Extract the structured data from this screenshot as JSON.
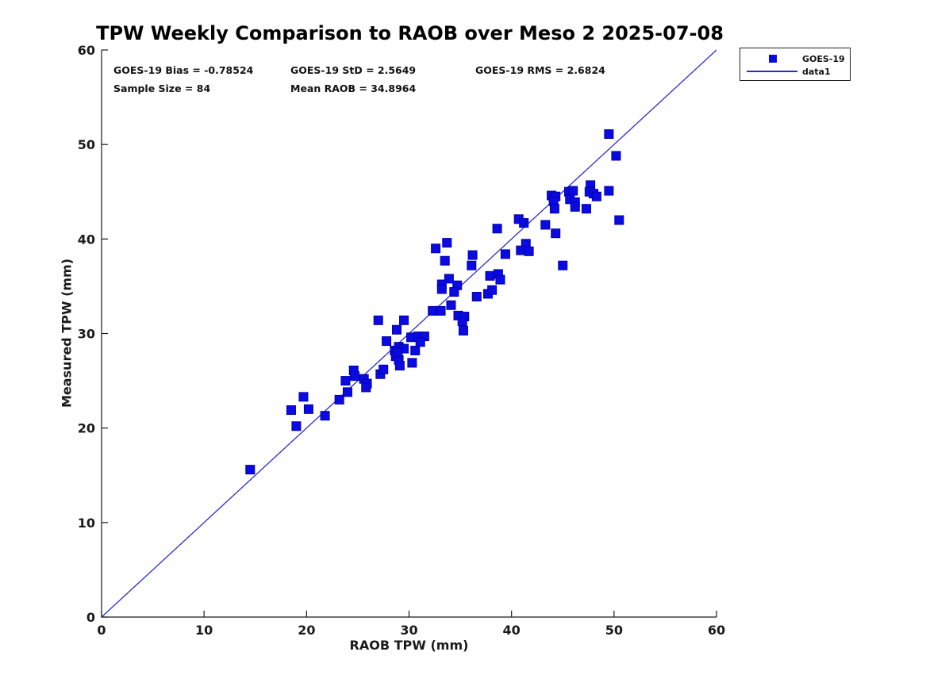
{
  "title": "TPW Weekly Comparison to RAOB over Meso 2 2025-07-08",
  "stats": {
    "bias": "GOES-19 Bias = -0.78524",
    "std": "GOES-19 StD = 2.5649",
    "rms": "GOES-19 RMS = 2.6824",
    "sample": "Sample Size = 84",
    "mean_raob": "Mean RAOB = 34.8964"
  },
  "legend": {
    "marker_label": "GOES-19",
    "line_label": "data1"
  },
  "colors": {
    "marker_fill": "#0a0ae1",
    "marker_edge": "#0000b0",
    "line": "#2b2bd0",
    "axis": "#1a1a1a",
    "text": "#111111"
  },
  "chart_data": {
    "type": "scatter",
    "title": "TPW Weekly Comparison to RAOB over Meso 2 2025-07-08",
    "xlabel": "RAOB TPW (mm)",
    "ylabel": "Measured TPW (mm)",
    "xlim": [
      0,
      60
    ],
    "ylim": [
      0,
      60
    ],
    "xticks": [
      0,
      10,
      20,
      30,
      40,
      50,
      60
    ],
    "yticks": [
      0,
      10,
      20,
      30,
      40,
      50,
      60
    ],
    "grid": false,
    "legend_position": "top-right-outside",
    "identity_line": {
      "name": "data1",
      "from": [
        0,
        0
      ],
      "to": [
        60,
        60
      ]
    },
    "stats": {
      "goes19_bias": -0.78524,
      "goes19_std": 2.5649,
      "goes19_rms": 2.6824,
      "sample_size": 84,
      "mean_raob": 34.8964
    },
    "series": [
      {
        "name": "GOES-19",
        "marker": "filled-square",
        "points": [
          [
            14.5,
            15.6
          ],
          [
            18.5,
            21.9
          ],
          [
            19.7,
            23.3
          ],
          [
            20.2,
            22.0
          ],
          [
            19.0,
            20.2
          ],
          [
            21.8,
            21.3
          ],
          [
            23.2,
            23.0
          ],
          [
            24.0,
            23.8
          ],
          [
            23.8,
            25.0
          ],
          [
            24.6,
            26.1
          ],
          [
            24.7,
            25.5
          ],
          [
            25.6,
            25.2
          ],
          [
            25.9,
            24.7
          ],
          [
            25.8,
            24.3
          ],
          [
            27.2,
            25.7
          ],
          [
            27.5,
            26.2
          ],
          [
            27.0,
            31.4
          ],
          [
            29.5,
            31.4
          ],
          [
            27.8,
            29.2
          ],
          [
            28.8,
            30.4
          ],
          [
            30.2,
            29.6
          ],
          [
            30.9,
            29.7
          ],
          [
            31.5,
            29.7
          ],
          [
            31.1,
            29.1
          ],
          [
            30.6,
            28.2
          ],
          [
            29.0,
            28.6
          ],
          [
            29.5,
            28.4
          ],
          [
            28.6,
            28.2
          ],
          [
            28.7,
            27.6
          ],
          [
            29.0,
            27.2
          ],
          [
            29.1,
            26.6
          ],
          [
            30.3,
            26.9
          ],
          [
            28.9,
            28.0
          ],
          [
            32.3,
            32.4
          ],
          [
            33.1,
            32.4
          ],
          [
            34.1,
            33.0
          ],
          [
            34.8,
            31.9
          ],
          [
            35.4,
            31.8
          ],
          [
            35.2,
            31.3
          ],
          [
            35.3,
            30.3
          ],
          [
            32.6,
            39.0
          ],
          [
            33.7,
            39.6
          ],
          [
            33.5,
            37.7
          ],
          [
            36.2,
            38.3
          ],
          [
            36.1,
            37.2
          ],
          [
            33.9,
            35.8
          ],
          [
            33.2,
            35.2
          ],
          [
            33.2,
            34.7
          ],
          [
            34.7,
            35.1
          ],
          [
            34.4,
            34.4
          ],
          [
            36.6,
            33.9
          ],
          [
            37.9,
            36.1
          ],
          [
            38.7,
            36.3
          ],
          [
            38.9,
            35.7
          ],
          [
            37.7,
            34.2
          ],
          [
            38.1,
            34.6
          ],
          [
            39.4,
            38.4
          ],
          [
            41.4,
            39.5
          ],
          [
            40.9,
            38.8
          ],
          [
            41.7,
            38.7
          ],
          [
            38.6,
            41.1
          ],
          [
            40.7,
            42.1
          ],
          [
            41.2,
            41.7
          ],
          [
            43.3,
            41.5
          ],
          [
            44.3,
            40.6
          ],
          [
            45.0,
            37.2
          ],
          [
            43.9,
            44.6
          ],
          [
            44.3,
            44.5
          ],
          [
            44.1,
            44.0
          ],
          [
            44.2,
            43.2
          ],
          [
            45.6,
            45.0
          ],
          [
            46.0,
            45.1
          ],
          [
            45.7,
            44.2
          ],
          [
            46.2,
            43.9
          ],
          [
            46.2,
            43.4
          ],
          [
            47.3,
            43.2
          ],
          [
            47.7,
            45.7
          ],
          [
            47.6,
            45.0
          ],
          [
            48.0,
            44.8
          ],
          [
            48.3,
            44.5
          ],
          [
            49.5,
            45.1
          ],
          [
            49.5,
            51.1
          ],
          [
            50.2,
            48.8
          ],
          [
            50.5,
            42.0
          ]
        ]
      }
    ]
  }
}
